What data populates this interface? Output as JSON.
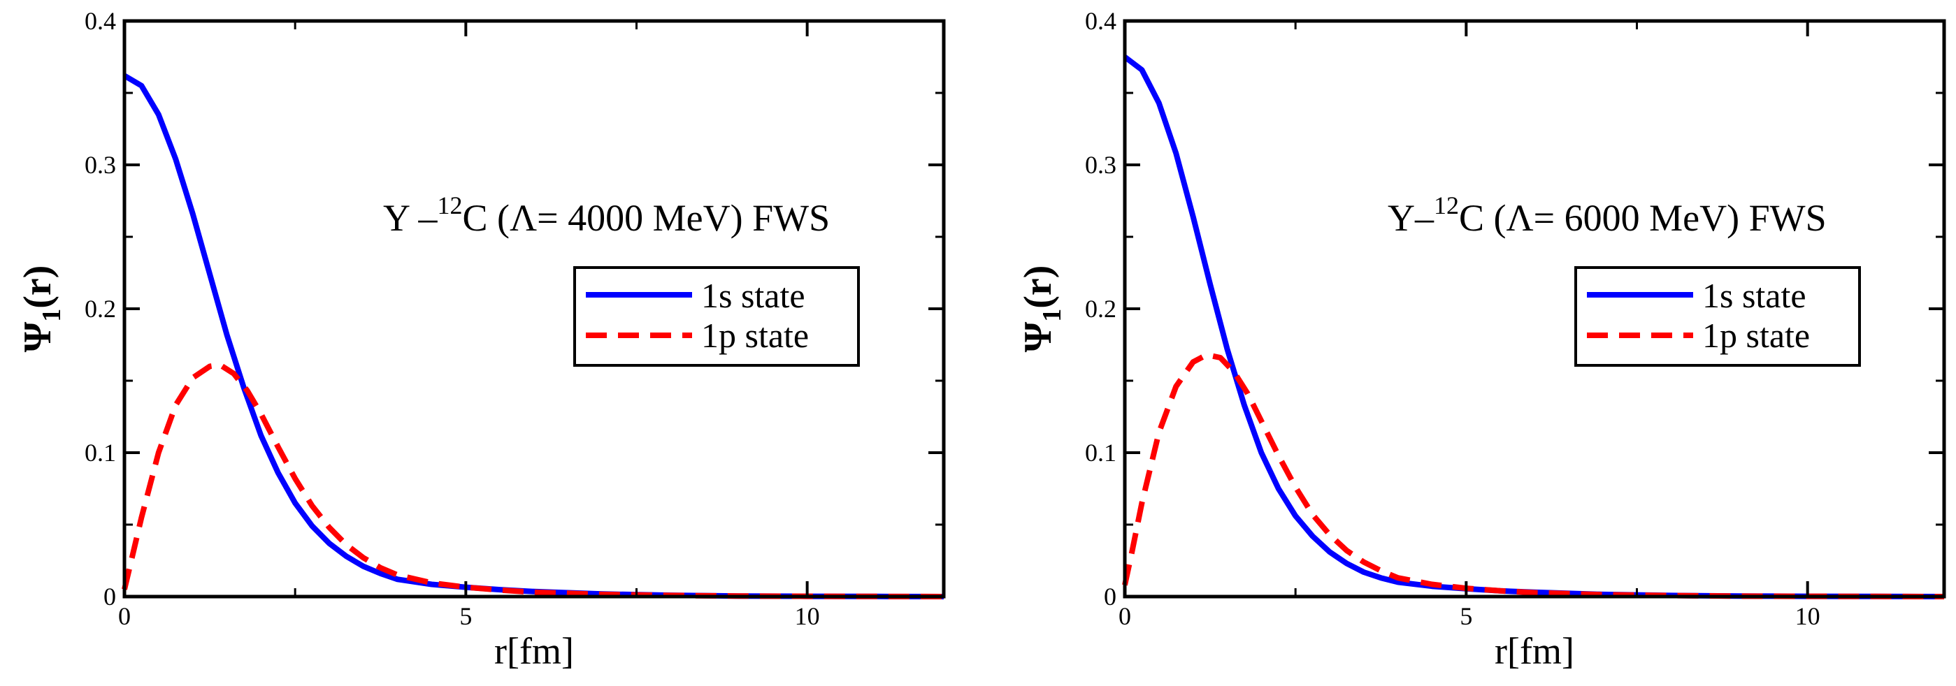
{
  "chart_data": [
    {
      "type": "line",
      "title": "",
      "xlabel": "r[fm]",
      "ylabel": "Ψ1(r)",
      "ylabel_main": "Ψ",
      "ylabel_sub": "1",
      "ylabel_tail": "(r)",
      "xlim": [
        0,
        12
      ],
      "ylim": [
        0,
        0.4
      ],
      "xticks": [
        0,
        5,
        10
      ],
      "xtick_labels": [
        "0",
        "5",
        "10"
      ],
      "yticks": [
        0,
        0.1,
        0.2,
        0.3,
        0.4
      ],
      "ytick_labels": [
        "0",
        "0.1",
        "0.2",
        "0.3",
        "0.4"
      ],
      "grid": false,
      "legend_position": "upper-right",
      "annotation": {
        "prefix": "Y –",
        "sup": "12",
        "suffix": "C (Λ= 4000 MeV) FWS"
      },
      "series": [
        {
          "name": "1s state",
          "color": "#0000ff",
          "style": "solid",
          "x": [
            0,
            0.25,
            0.5,
            0.75,
            1.0,
            1.25,
            1.5,
            1.75,
            2.0,
            2.25,
            2.5,
            2.75,
            3.0,
            3.25,
            3.5,
            3.75,
            4.0,
            4.5,
            5.0,
            5.5,
            6.0,
            7.0,
            8.0,
            9.0,
            10.0,
            11.0,
            12.0
          ],
          "y": [
            0.362,
            0.355,
            0.335,
            0.304,
            0.266,
            0.224,
            0.182,
            0.145,
            0.112,
            0.086,
            0.065,
            0.049,
            0.037,
            0.028,
            0.021,
            0.016,
            0.012,
            0.0085,
            0.0065,
            0.0048,
            0.0035,
            0.0018,
            0.0009,
            0.0004,
            0.0002,
            0.0001,
            0.0
          ]
        },
        {
          "name": "1p state",
          "color": "#ff0000",
          "style": "dashed",
          "x": [
            0,
            0.1,
            0.25,
            0.5,
            0.75,
            1.0,
            1.25,
            1.4,
            1.6,
            1.8,
            2.0,
            2.25,
            2.5,
            2.75,
            3.0,
            3.25,
            3.5,
            3.75,
            4.0,
            4.5,
            5.0,
            5.5,
            6.0,
            7.0,
            8.0,
            9.0,
            10.0,
            11.0,
            12.0
          ],
          "y": [
            0.005,
            0.025,
            0.055,
            0.1,
            0.133,
            0.152,
            0.16,
            0.161,
            0.155,
            0.143,
            0.127,
            0.104,
            0.082,
            0.063,
            0.048,
            0.036,
            0.027,
            0.02,
            0.015,
            0.0095,
            0.0065,
            0.0045,
            0.003,
            0.0015,
            0.0008,
            0.0004,
            0.0002,
            0.0001,
            0.0
          ]
        }
      ]
    },
    {
      "type": "line",
      "title": "",
      "xlabel": "r[fm]",
      "ylabel": "Ψ1(r)",
      "ylabel_main": "Ψ",
      "ylabel_sub": "1",
      "ylabel_tail": "(r)",
      "xlim": [
        0,
        12
      ],
      "ylim": [
        0,
        0.4
      ],
      "xticks": [
        0,
        5,
        10
      ],
      "xtick_labels": [
        "0",
        "5",
        "10"
      ],
      "yticks": [
        0,
        0.1,
        0.2,
        0.3,
        0.4
      ],
      "ytick_labels": [
        "0",
        "0.1",
        "0.2",
        "0.3",
        "0.4"
      ],
      "grid": false,
      "legend_position": "upper-right",
      "annotation": {
        "prefix": "Y–",
        "sup": "12",
        "suffix": "C (Λ= 6000 MeV) FWS"
      },
      "series": [
        {
          "name": "1s state",
          "color": "#0000ff",
          "style": "solid",
          "x": [
            0,
            0.25,
            0.5,
            0.75,
            1.0,
            1.25,
            1.5,
            1.75,
            2.0,
            2.25,
            2.5,
            2.75,
            3.0,
            3.25,
            3.5,
            3.75,
            4.0,
            4.5,
            5.0,
            5.5,
            6.0,
            7.0,
            8.0,
            9.0,
            10.0,
            11.0,
            12.0
          ],
          "y": [
            0.375,
            0.366,
            0.343,
            0.308,
            0.264,
            0.217,
            0.172,
            0.133,
            0.1,
            0.075,
            0.056,
            0.042,
            0.031,
            0.023,
            0.017,
            0.013,
            0.01,
            0.0072,
            0.0055,
            0.004,
            0.003,
            0.0015,
            0.0008,
            0.0004,
            0.0002,
            0.0001,
            0.0
          ]
        },
        {
          "name": "1p state",
          "color": "#ff0000",
          "style": "dashed",
          "x": [
            0,
            0.1,
            0.25,
            0.5,
            0.75,
            1.0,
            1.2,
            1.4,
            1.6,
            1.8,
            2.0,
            2.25,
            2.5,
            2.75,
            3.0,
            3.25,
            3.5,
            3.75,
            4.0,
            4.5,
            5.0,
            5.5,
            6.0,
            7.0,
            8.0,
            9.0,
            10.0,
            11.0,
            12.0
          ],
          "y": [
            0.008,
            0.03,
            0.065,
            0.114,
            0.146,
            0.163,
            0.168,
            0.166,
            0.156,
            0.141,
            0.122,
            0.098,
            0.076,
            0.057,
            0.043,
            0.032,
            0.024,
            0.018,
            0.013,
            0.0085,
            0.0058,
            0.004,
            0.0027,
            0.0013,
            0.0007,
            0.0003,
            0.0002,
            0.0001,
            0.0
          ]
        }
      ]
    }
  ]
}
